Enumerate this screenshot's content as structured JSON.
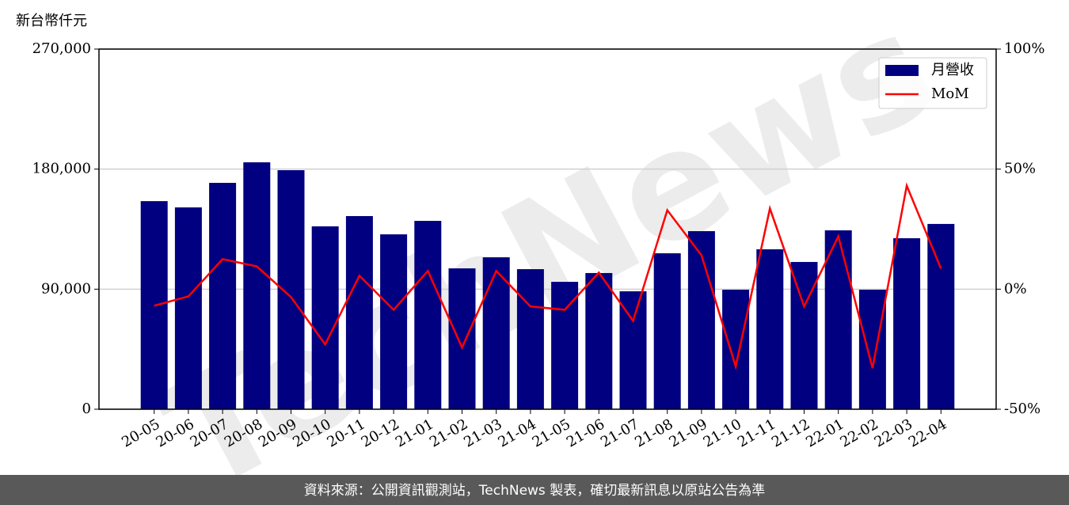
{
  "chart_data": {
    "type": "bar",
    "y_label": "新台幣仟元",
    "watermark": "TechNews",
    "footer": "資料來源：公開資訊觀測站，TechNews 製表，確切最新訊息以原站公告為準",
    "categories": [
      "20-05",
      "20-06",
      "20-07",
      "20-08",
      "20-09",
      "20-10",
      "20-11",
      "20-12",
      "21-01",
      "21-02",
      "21-03",
      "21-04",
      "21-05",
      "21-06",
      "21-07",
      "21-08",
      "21-09",
      "21-10",
      "21-11",
      "21-12",
      "22-01",
      "22-02",
      "22-03",
      "22-04"
    ],
    "series": [
      {
        "name": "月營收",
        "type": "bar",
        "color": "#000080",
        "values": [
          156000,
          151300,
          169700,
          185100,
          179200,
          137100,
          144800,
          131100,
          141200,
          105600,
          113900,
          105000,
          95500,
          102100,
          88400,
          116900,
          133500,
          89600,
          119900,
          110400,
          134100,
          89600,
          128200,
          138900
        ]
      },
      {
        "name": "MoM",
        "type": "line",
        "axis": "y2",
        "color": "#ff0000",
        "values": [
          -6.9,
          -3.0,
          12.5,
          9.5,
          -3.3,
          -23.0,
          5.6,
          -8.6,
          7.6,
          -24.3,
          7.6,
          -7.2,
          -8.6,
          6.9,
          -13.2,
          32.9,
          14.1,
          -32.2,
          33.6,
          -7.2,
          22.0,
          -32.9,
          43.1,
          8.6
        ]
      }
    ],
    "ylim": [
      0,
      270000
    ],
    "yticks": [
      0,
      {
        "value": 90000,
        "label": "90,000"
      },
      {
        "value": 180000,
        "label": "180,000"
      },
      {
        "value": 270000,
        "label": "270,000"
      }
    ],
    "y2lim": [
      -50,
      100
    ],
    "y2ticks": [
      {
        "value": -50,
        "label": "-50%"
      },
      {
        "value": 0,
        "label": "0%"
      },
      {
        "value": 50,
        "label": "50%"
      },
      {
        "value": 100,
        "label": "100%"
      }
    ],
    "grid": true,
    "legend": "upper right"
  }
}
